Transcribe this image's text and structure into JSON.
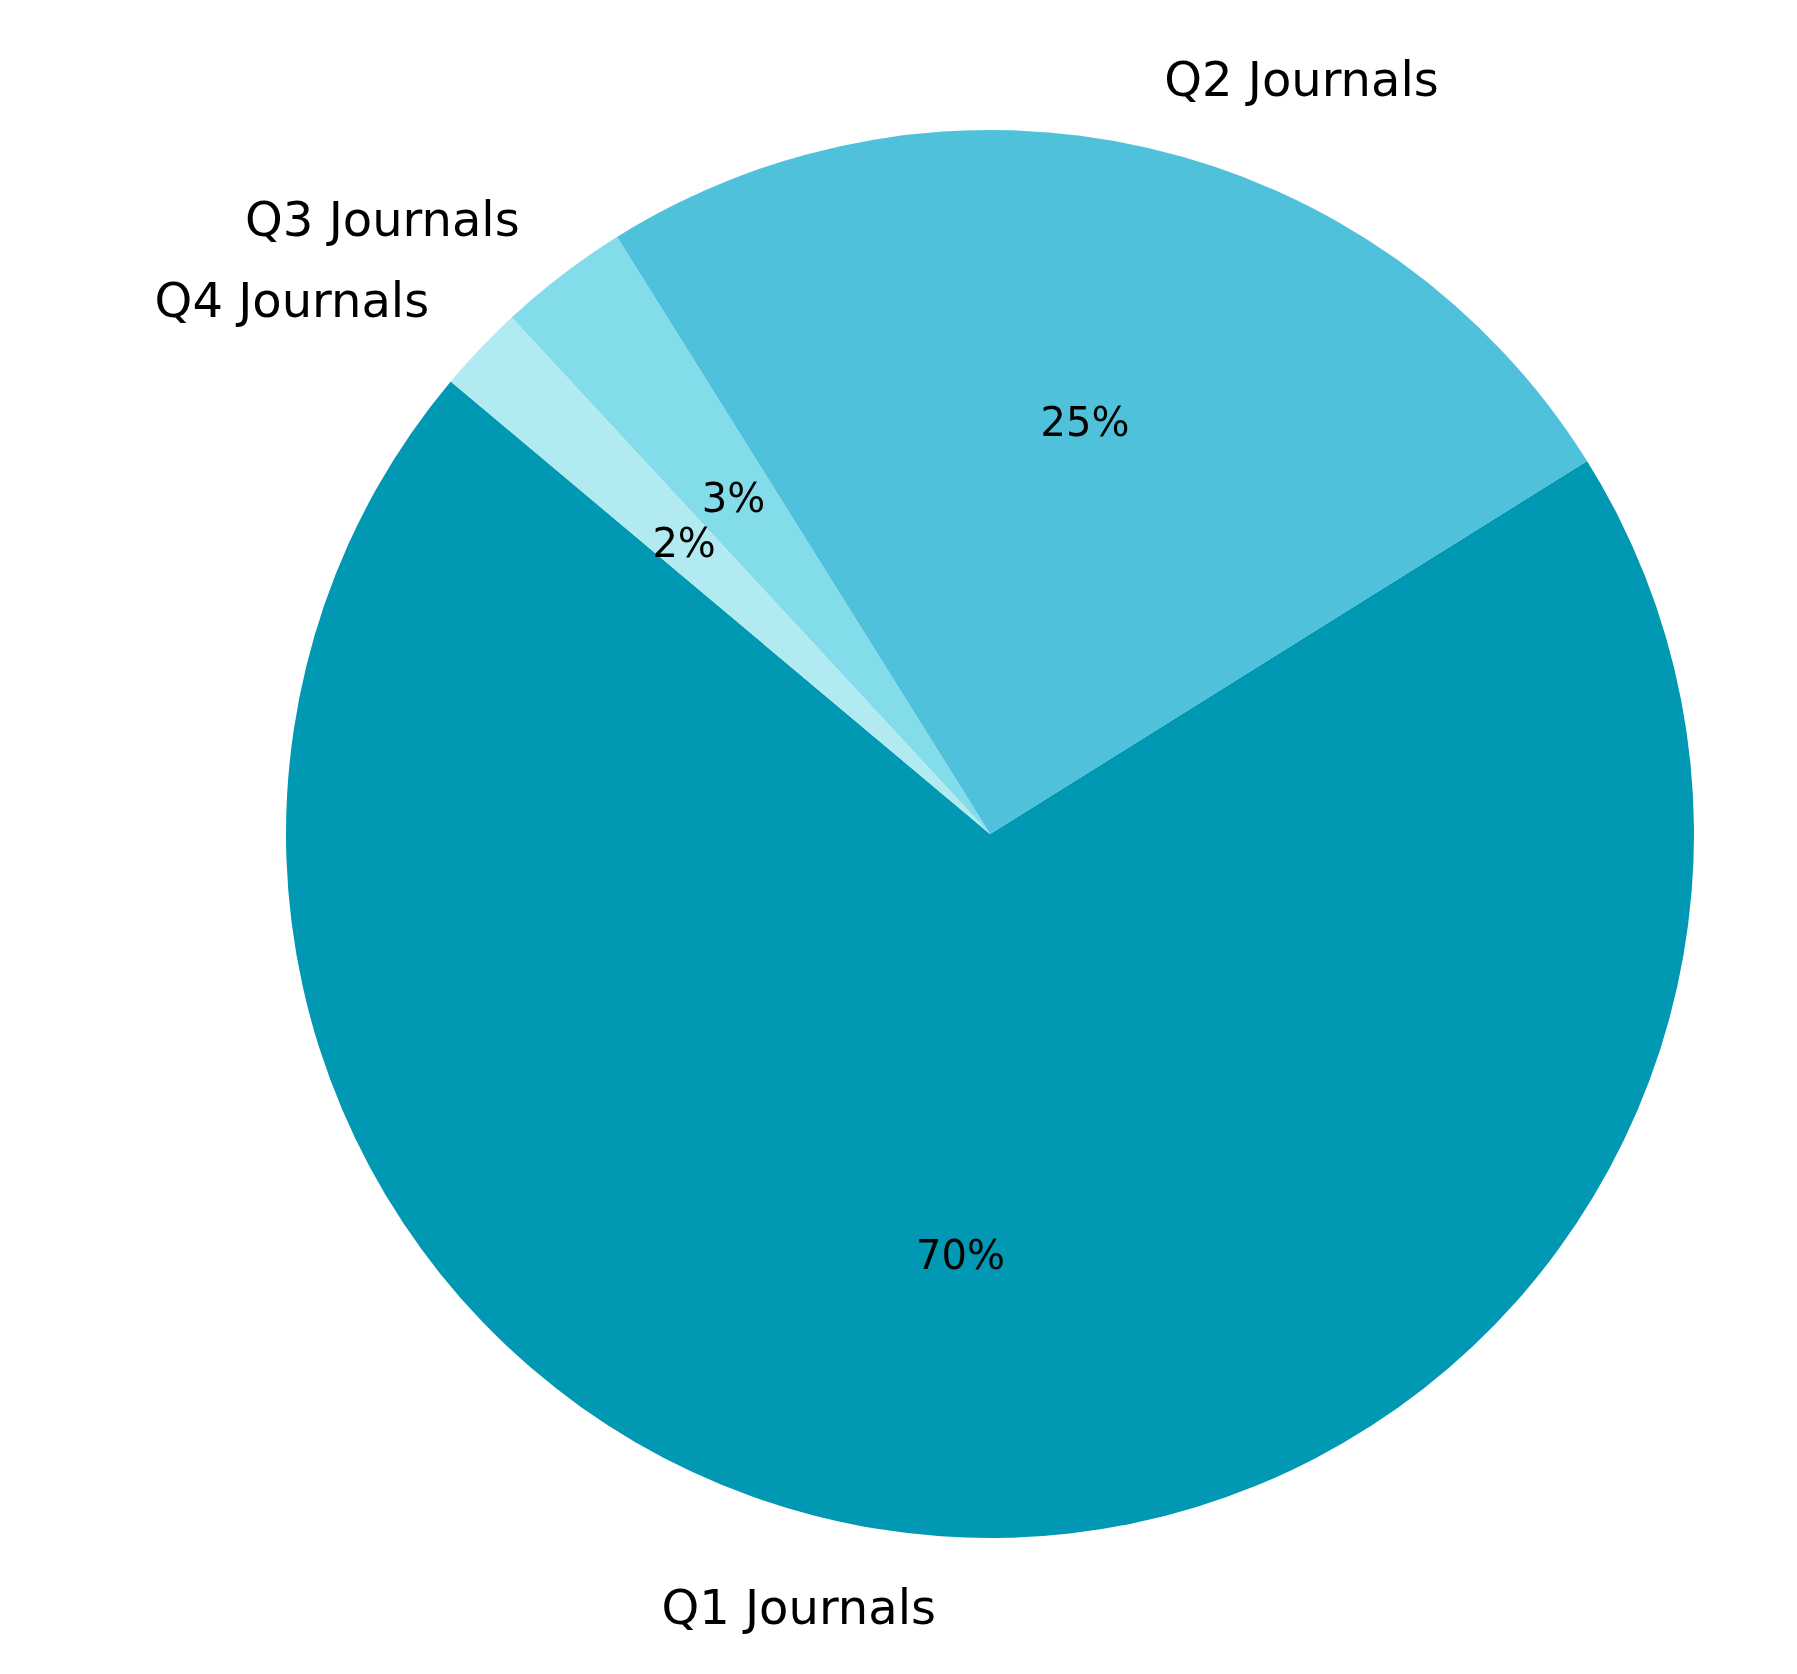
{
  "chart_data": {
    "type": "pie",
    "categories": [
      "Q1 Journals",
      "Q2 Journals",
      "Q3 Journals",
      "Q4 Journals"
    ],
    "values": [
      70,
      25,
      3,
      2
    ],
    "colors": [
      "#0098b3",
      "#4fc1da",
      "#82dcea",
      "#b2eaf2"
    ],
    "value_labels": [
      "70%",
      "25%",
      "3%",
      "2%"
    ]
  }
}
